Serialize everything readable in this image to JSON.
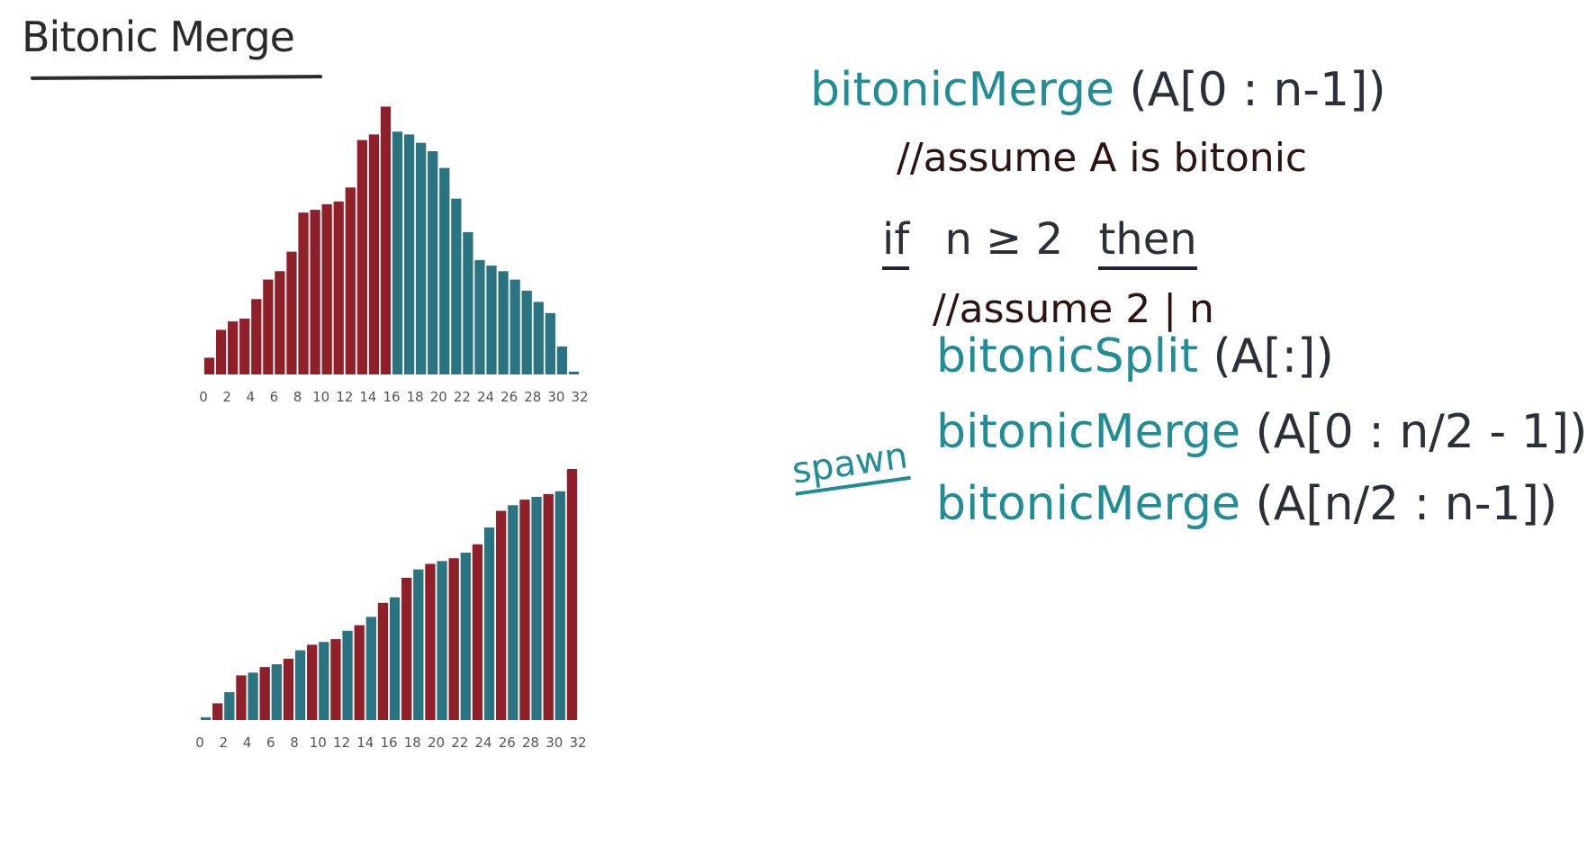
{
  "title": "Bitonic Merge",
  "colors": {
    "red": "#8f1f28",
    "teal": "#2a7482",
    "code_teal": "#1f8c96",
    "dark": "#2b2f38"
  },
  "pseudocode": {
    "func_name": "bitonicMerge",
    "func_args": "(A[0 : n-1])",
    "comment1": "//assume A is bitonic",
    "if_kw": "if",
    "condition": "n ≥ 2",
    "then_kw": "then",
    "comment2": "//assume 2 | n",
    "split_name": "bitonicSplit",
    "split_args": "(A[:])",
    "spawn_kw": "spawn",
    "merge1_name": "bitonicMerge",
    "merge1_args": "(A[0 : n/2 - 1])",
    "merge2_name": "bitonicMerge",
    "merge2_args": "(A[n/2 : n-1])"
  },
  "chart_data": [
    {
      "type": "bar",
      "x": [
        0,
        1,
        2,
        3,
        4,
        5,
        6,
        7,
        8,
        9,
        10,
        11,
        12,
        13,
        14,
        15,
        16,
        17,
        18,
        19,
        20,
        21,
        22,
        23,
        24,
        25,
        26,
        27,
        28,
        29,
        30,
        31
      ],
      "values": [
        6,
        16,
        19,
        20,
        27,
        34,
        37,
        44,
        58,
        59,
        61,
        62,
        67,
        84,
        86,
        96,
        87,
        86,
        83,
        80,
        74,
        63,
        51,
        41,
        39,
        37,
        34,
        30,
        26,
        22,
        10,
        1
      ],
      "bar_colors": [
        "red",
        "red",
        "red",
        "red",
        "red",
        "red",
        "red",
        "red",
        "red",
        "red",
        "red",
        "red",
        "red",
        "red",
        "red",
        "red",
        "teal",
        "teal",
        "teal",
        "teal",
        "teal",
        "teal",
        "teal",
        "teal",
        "teal",
        "teal",
        "teal",
        "teal",
        "teal",
        "teal",
        "teal",
        "teal"
      ],
      "tick_labels": [
        "0",
        "2",
        "4",
        "6",
        "8",
        "10",
        "12",
        "14",
        "16",
        "18",
        "20",
        "22",
        "24",
        "26",
        "28",
        "30",
        "32"
      ],
      "ylim": [
        0,
        100
      ]
    },
    {
      "type": "bar",
      "x": [
        0,
        1,
        2,
        3,
        4,
        5,
        6,
        7,
        8,
        9,
        10,
        11,
        12,
        13,
        14,
        15,
        16,
        17,
        18,
        19,
        20,
        21,
        22,
        23,
        24,
        25,
        26,
        27,
        28,
        29,
        30,
        31
      ],
      "values": [
        1,
        6,
        10,
        16,
        17,
        19,
        20,
        22,
        25,
        27,
        28,
        29,
        32,
        34,
        37,
        42,
        44,
        51,
        54,
        56,
        57,
        58,
        60,
        63,
        69,
        75,
        77,
        79,
        80,
        81,
        82,
        90
      ],
      "bar_colors": [
        "teal",
        "red",
        "teal",
        "red",
        "teal",
        "red",
        "teal",
        "red",
        "teal",
        "red",
        "teal",
        "red",
        "teal",
        "red",
        "teal",
        "red",
        "teal",
        "red",
        "teal",
        "red",
        "teal",
        "red",
        "teal",
        "red",
        "teal",
        "red",
        "teal",
        "red",
        "teal",
        "red",
        "teal",
        "red"
      ],
      "tick_labels": [
        "0",
        "2",
        "4",
        "6",
        "8",
        "10",
        "12",
        "14",
        "16",
        "18",
        "20",
        "22",
        "24",
        "26",
        "28",
        "30",
        "32"
      ],
      "ylim": [
        0,
        100
      ]
    }
  ]
}
